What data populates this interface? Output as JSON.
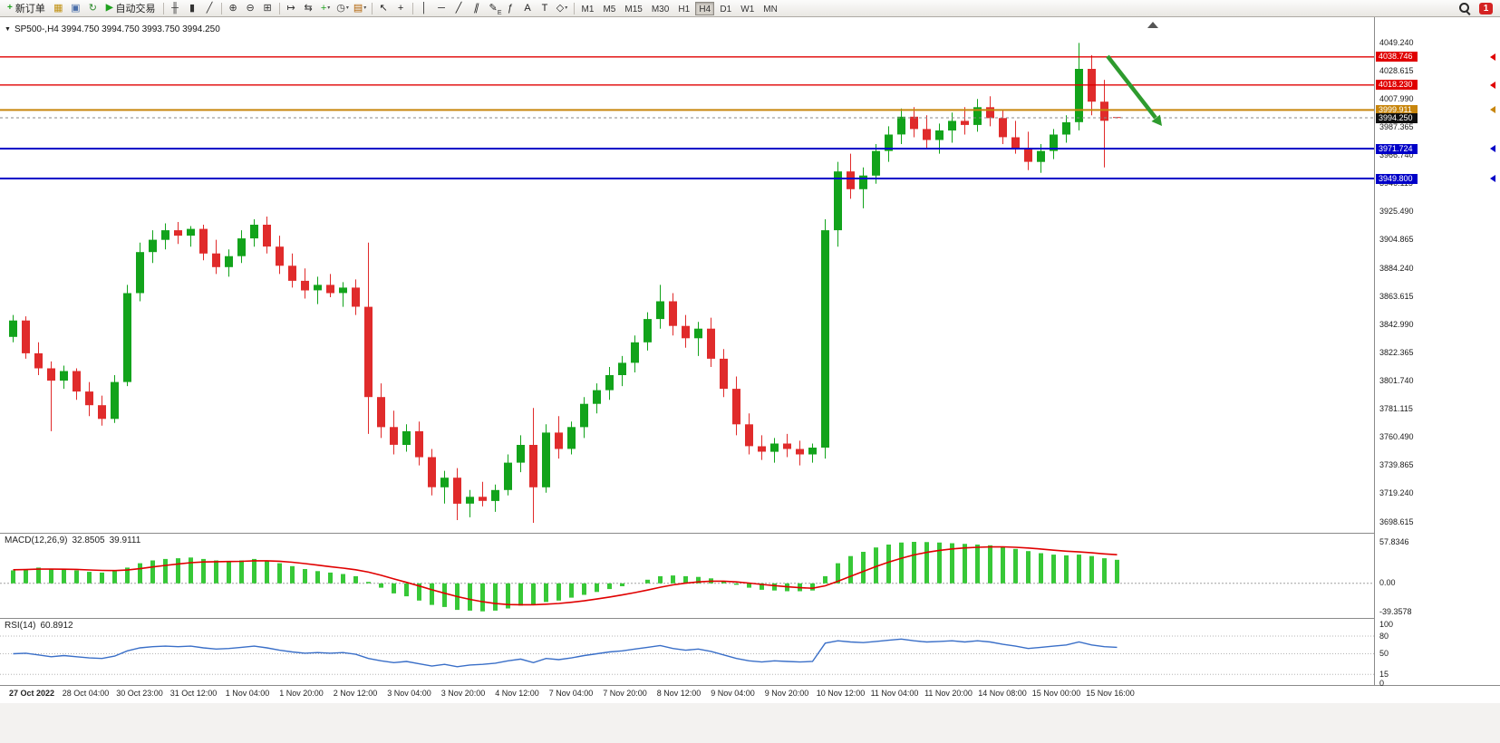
{
  "app": {
    "notification_count": "1"
  },
  "toolbar": {
    "caret_glyph": "▾",
    "items": [
      {
        "type": "button",
        "name": "new-order-button",
        "icon": "new-order-icon",
        "glyph": "+",
        "glyph_color": "#1fa11f",
        "label": "新订单"
      },
      {
        "type": "icon",
        "name": "new-chart-icon",
        "glyph": "▦",
        "color": "#c09010"
      },
      {
        "type": "icon",
        "name": "profiles-icon",
        "glyph": "▣",
        "color": "#4a6ea9"
      },
      {
        "type": "icon",
        "name": "refresh-icon",
        "glyph": "↻",
        "color": "#2e8b2e"
      },
      {
        "type": "button",
        "name": "autotrading-button",
        "icon": "autotrading-play-icon",
        "glyph": "▶",
        "glyph_color": "#1fa11f",
        "label": "自动交易"
      },
      {
        "type": "sep"
      },
      {
        "type": "icon",
        "name": "chart-bars-icon",
        "glyph": "╫",
        "color": "#333333"
      },
      {
        "type": "icon",
        "name": "chart-candles-icon",
        "glyph": "▮",
        "color": "#333333"
      },
      {
        "type": "icon",
        "name": "chart-line-icon",
        "glyph": "╱",
        "color": "#333333"
      },
      {
        "type": "sep"
      },
      {
        "type": "icon",
        "name": "zoom-in-icon",
        "glyph": "⊕",
        "color": "#333333"
      },
      {
        "type": "icon",
        "name": "zoom-out-icon",
        "glyph": "⊖",
        "color": "#333333"
      },
      {
        "type": "icon",
        "name": "tile-windows-icon",
        "glyph": "⊞",
        "color": "#333333"
      },
      {
        "type": "sep"
      },
      {
        "type": "icon",
        "name": "autoscroll-icon",
        "glyph": "↦",
        "color": "#333333"
      },
      {
        "type": "icon",
        "name": "chart-shift-icon",
        "glyph": "⇆",
        "color": "#333333"
      },
      {
        "type": "icon",
        "name": "indicators-icon",
        "glyph": "+",
        "color": "#1fa11f",
        "caret": true
      },
      {
        "type": "icon",
        "name": "periods-icon",
        "glyph": "◷",
        "color": "#333333",
        "caret": true
      },
      {
        "type": "icon",
        "name": "templates-icon",
        "glyph": "▤",
        "color": "#b06000",
        "caret": true
      },
      {
        "type": "sep"
      },
      {
        "type": "icon",
        "name": "cursor-icon",
        "glyph": "↖",
        "color": "#222222"
      },
      {
        "type": "icon",
        "name": "crosshair-icon",
        "glyph": "+",
        "color": "#222222"
      },
      {
        "type": "sep"
      },
      {
        "type": "icon",
        "name": "vertical-line-icon",
        "glyph": "│",
        "color": "#222222"
      },
      {
        "type": "icon",
        "name": "horizontal-line-icon",
        "glyph": "─",
        "color": "#222222"
      },
      {
        "type": "icon",
        "name": "trendline-icon",
        "glyph": "╱",
        "color": "#222222"
      },
      {
        "type": "icon",
        "name": "channel-icon",
        "glyph": "∥",
        "color": "#222222",
        "italic": true
      },
      {
        "type": "icon",
        "name": "equidistant-channel-icon",
        "glyph": "✎",
        "color": "#222222",
        "sub": "E"
      },
      {
        "type": "icon",
        "name": "fibonacci-icon",
        "glyph": "ƒ",
        "color": "#222222"
      },
      {
        "type": "icon",
        "name": "text-icon",
        "glyph": "A",
        "color": "#222222"
      },
      {
        "type": "icon",
        "name": "label-icon",
        "glyph": "T",
        "color": "#222222"
      },
      {
        "type": "icon",
        "name": "shapes-icon",
        "glyph": "◇",
        "color": "#222222",
        "caret": true
      },
      {
        "type": "sep"
      },
      {
        "type": "timeframes"
      }
    ],
    "timeframes": {
      "options": [
        "M1",
        "M5",
        "M15",
        "M30",
        "H1",
        "H4",
        "D1",
        "W1",
        "MN"
      ],
      "active": "H4"
    }
  },
  "chart": {
    "collapse_glyph": "▼",
    "title": "SP500-,H4 3994.750 3994.750 3993.750 3994.250",
    "symbol": "SP500-",
    "period": "H4",
    "ohlc": {
      "open": "3994.750",
      "high": "3994.750",
      "low": "3993.750",
      "close": "3994.250"
    },
    "price_axis": {
      "labels": [
        "4049.240",
        "4028.615",
        "4007.990",
        "3987.365",
        "3966.740",
        "3946.115",
        "3925.490",
        "3904.865",
        "3884.240",
        "3863.615",
        "3842.990",
        "3822.365",
        "3801.740",
        "3781.115",
        "3760.490",
        "3739.865",
        "3719.240",
        "3698.615"
      ],
      "values": [
        4049.24,
        4028.615,
        4007.99,
        3987.365,
        3966.74,
        3946.115,
        3925.49,
        3904.865,
        3884.24,
        3863.615,
        3842.99,
        3822.365,
        3801.74,
        3781.115,
        3760.49,
        3739.865,
        3719.24,
        3698.615
      ]
    },
    "price_lines": [
      {
        "value": 4038.746,
        "label": "4038.746",
        "color": "#e00000",
        "width": 1.4
      },
      {
        "value": 4018.23,
        "label": "4018.230",
        "color": "#e00000",
        "width": 1.4
      },
      {
        "value": 3999.911,
        "label": "3999.911",
        "color": "#c8860d",
        "width": 2
      },
      {
        "value": 3971.724,
        "label": "3971.724",
        "color": "#0000c8",
        "width": 2
      },
      {
        "value": 3949.8,
        "label": "3949.800",
        "color": "#0000c8",
        "width": 2
      }
    ],
    "bid": {
      "value": 3994.25,
      "label": "3994.250",
      "bg": "#101010"
    },
    "time_axis": [
      "27 Oct 2022",
      "28 Oct 04:00",
      "30 Oct 23:00",
      "31 Oct 12:00",
      "1 Nov 04:00",
      "1 Nov 20:00",
      "2 Nov 12:00",
      "3 Nov 04:00",
      "3 Nov 20:00",
      "4 Nov 12:00",
      "7 Nov 04:00",
      "7 Nov 20:00",
      "8 Nov 12:00",
      "9 Nov 04:00",
      "9 Nov 20:00",
      "10 Nov 12:00",
      "11 Nov 04:00",
      "11 Nov 20:00",
      "14 Nov 08:00",
      "15 Nov 00:00",
      "15 Nov 16:00"
    ]
  },
  "indicators": {
    "macd": {
      "name": "MACD(12,26,9)",
      "value1": "32.8505",
      "value2": "39.9111",
      "axis_labels": [
        "57.8346",
        "0.00",
        "-39.3578"
      ],
      "axis_values": [
        57.8346,
        0,
        -39.3578
      ]
    },
    "rsi": {
      "name": "RSI(14)",
      "value": "60.8912",
      "axis_labels": [
        "100",
        "80",
        "50",
        "15",
        "0"
      ],
      "axis_values": [
        100,
        80,
        50,
        15,
        0
      ],
      "levels": [
        80,
        50,
        15
      ]
    }
  },
  "colors": {
    "up": "#12a31b",
    "down": "#e02b2b",
    "macd_hist": "#37c837",
    "macd_signal": "#e00000",
    "rsi_line": "#3a6fc8",
    "arrow": "#2e9b2e",
    "separator": "#8a8a8a"
  },
  "chart_data": {
    "type": "candlestick",
    "title": "SP500-,H4",
    "symbol": "SP500-",
    "timeframe": "H4",
    "x_tick_labels": [
      "27 Oct 2022",
      "28 Oct 04:00",
      "30 Oct 23:00",
      "31 Oct 12:00",
      "1 Nov 04:00",
      "1 Nov 20:00",
      "2 Nov 12:00",
      "3 Nov 04:00",
      "3 Nov 20:00",
      "4 Nov 12:00",
      "7 Nov 04:00",
      "7 Nov 20:00",
      "8 Nov 12:00",
      "9 Nov 04:00",
      "9 Nov 20:00",
      "10 Nov 12:00",
      "11 Nov 04:00",
      "11 Nov 20:00",
      "14 Nov 08:00",
      "15 Nov 00:00",
      "15 Nov 16:00"
    ],
    "y_range": [
      3698.615,
      4049.24
    ],
    "candles": [
      [
        3834,
        3850,
        3830,
        3846
      ],
      [
        3846,
        3849,
        3818,
        3822
      ],
      [
        3822,
        3830,
        3806,
        3811
      ],
      [
        3811,
        3816,
        3765,
        3802
      ],
      [
        3802,
        3813,
        3796,
        3809
      ],
      [
        3809,
        3811,
        3788,
        3794
      ],
      [
        3794,
        3801,
        3776,
        3784
      ],
      [
        3784,
        3791,
        3769,
        3774
      ],
      [
        3774,
        3806,
        3771,
        3801
      ],
      [
        3801,
        3872,
        3798,
        3866
      ],
      [
        3866,
        3903,
        3860,
        3896
      ],
      [
        3896,
        3912,
        3888,
        3905
      ],
      [
        3905,
        3917,
        3898,
        3912
      ],
      [
        3912,
        3918,
        3902,
        3908
      ],
      [
        3908,
        3915,
        3900,
        3913
      ],
      [
        3913,
        3916,
        3890,
        3895
      ],
      [
        3895,
        3905,
        3880,
        3885
      ],
      [
        3885,
        3898,
        3878,
        3893
      ],
      [
        3893,
        3912,
        3888,
        3906
      ],
      [
        3906,
        3920,
        3900,
        3916
      ],
      [
        3916,
        3922,
        3895,
        3900
      ],
      [
        3900,
        3908,
        3880,
        3886
      ],
      [
        3886,
        3895,
        3870,
        3875
      ],
      [
        3875,
        3884,
        3862,
        3868
      ],
      [
        3868,
        3878,
        3858,
        3872
      ],
      [
        3872,
        3880,
        3863,
        3866
      ],
      [
        3866,
        3874,
        3856,
        3870
      ],
      [
        3870,
        3876,
        3850,
        3856
      ],
      [
        3856,
        3903,
        3763,
        3790
      ],
      [
        3790,
        3800,
        3760,
        3768
      ],
      [
        3768,
        3780,
        3748,
        3755
      ],
      [
        3755,
        3770,
        3750,
        3765
      ],
      [
        3765,
        3772,
        3740,
        3746
      ],
      [
        3746,
        3752,
        3718,
        3724
      ],
      [
        3724,
        3736,
        3712,
        3731
      ],
      [
        3731,
        3738,
        3700,
        3712
      ],
      [
        3712,
        3722,
        3702,
        3717
      ],
      [
        3717,
        3728,
        3710,
        3714
      ],
      [
        3714,
        3726,
        3706,
        3722
      ],
      [
        3722,
        3748,
        3718,
        3742
      ],
      [
        3742,
        3762,
        3735,
        3755
      ],
      [
        3755,
        3782,
        3698,
        3724
      ],
      [
        3724,
        3770,
        3720,
        3764
      ],
      [
        3764,
        3776,
        3745,
        3752
      ],
      [
        3752,
        3772,
        3748,
        3768
      ],
      [
        3768,
        3790,
        3760,
        3785
      ],
      [
        3785,
        3800,
        3778,
        3795
      ],
      [
        3795,
        3812,
        3788,
        3806
      ],
      [
        3806,
        3820,
        3798,
        3815
      ],
      [
        3815,
        3835,
        3808,
        3830
      ],
      [
        3830,
        3852,
        3824,
        3847
      ],
      [
        3847,
        3872,
        3840,
        3860
      ],
      [
        3860,
        3866,
        3835,
        3842
      ],
      [
        3842,
        3850,
        3826,
        3833
      ],
      [
        3833,
        3845,
        3820,
        3840
      ],
      [
        3840,
        3848,
        3812,
        3818
      ],
      [
        3818,
        3825,
        3790,
        3796
      ],
      [
        3796,
        3805,
        3762,
        3770
      ],
      [
        3770,
        3778,
        3748,
        3754
      ],
      [
        3754,
        3762,
        3744,
        3750
      ],
      [
        3750,
        3760,
        3742,
        3756
      ],
      [
        3756,
        3763,
        3746,
        3752
      ],
      [
        3752,
        3758,
        3740,
        3748
      ],
      [
        3748,
        3756,
        3742,
        3753
      ],
      [
        3753,
        3920,
        3745,
        3912
      ],
      [
        3912,
        3962,
        3900,
        3955
      ],
      [
        3955,
        3968,
        3935,
        3942
      ],
      [
        3942,
        3958,
        3928,
        3952
      ],
      [
        3952,
        3975,
        3946,
        3970
      ],
      [
        3970,
        3988,
        3962,
        3982
      ],
      [
        3982,
        4001,
        3975,
        3995
      ],
      [
        3995,
        4002,
        3980,
        3986
      ],
      [
        3986,
        3996,
        3972,
        3978
      ],
      [
        3978,
        3990,
        3968,
        3985
      ],
      [
        3985,
        3998,
        3976,
        3992
      ],
      [
        3992,
        4002,
        3982,
        3989
      ],
      [
        3989,
        4008,
        3984,
        4002
      ],
      [
        4002,
        4010,
        3988,
        3994
      ],
      [
        3994,
        4000,
        3975,
        3980
      ],
      [
        3980,
        3992,
        3968,
        3972
      ],
      [
        3972,
        3984,
        3956,
        3962
      ],
      [
        3962,
        3975,
        3954,
        3970
      ],
      [
        3970,
        3986,
        3964,
        3982
      ],
      [
        3982,
        3996,
        3976,
        3991
      ],
      [
        3991,
        4049,
        3985,
        4030
      ],
      [
        4030,
        4040,
        3996,
        4006
      ],
      [
        4006,
        4022,
        3958,
        3992
      ],
      [
        3994.75,
        3994.75,
        3993.75,
        3994.25
      ]
    ],
    "macd": {
      "type": "bar+line",
      "range": [
        -39.3578,
        57.8346
      ],
      "histogram": [
        18,
        20,
        22,
        20,
        19,
        18,
        16,
        15,
        17,
        22,
        28,
        32,
        34,
        35,
        36,
        34,
        32,
        31,
        32,
        34,
        32,
        28,
        24,
        20,
        17,
        15,
        13,
        10,
        2,
        -6,
        -14,
        -18,
        -24,
        -30,
        -33,
        -37,
        -38,
        -39,
        -38,
        -35,
        -31,
        -30,
        -26,
        -24,
        -20,
        -16,
        -12,
        -8,
        -4,
        0,
        5,
        10,
        11,
        10,
        9,
        7,
        3,
        -2,
        -6,
        -9,
        -10,
        -11,
        -11,
        -10,
        10,
        28,
        38,
        44,
        50,
        54,
        57,
        57.8,
        57.5,
        57,
        56,
        55,
        54,
        53,
        51,
        48,
        45,
        42,
        40,
        39,
        40,
        38,
        35,
        32.85
      ],
      "signal": [
        19,
        19.2,
        19.8,
        19.8,
        19.7,
        19.4,
        18.7,
        18,
        17.8,
        18.6,
        20.5,
        22.8,
        25,
        27,
        28.8,
        29.8,
        30.2,
        30.4,
        30.7,
        31.4,
        31.5,
        30.8,
        29.4,
        27.5,
        25.4,
        23.3,
        21.2,
        19,
        15.6,
        11.3,
        6.2,
        1.4,
        -3.7,
        -9,
        -13.8,
        -18.4,
        -22.3,
        -25.6,
        -28.1,
        -29.5,
        -29.8,
        -29.8,
        -29,
        -28,
        -26.4,
        -24.3,
        -21.9,
        -19.1,
        -16.1,
        -12.9,
        -9.3,
        -5.4,
        -2.1,
        0.3,
        2,
        3,
        3,
        2,
        0.4,
        -1.5,
        -3.2,
        -4.8,
        -6,
        -6.8,
        -3.4,
        2.9,
        9.9,
        16.7,
        23.4,
        29.5,
        35,
        39.6,
        43.2,
        46,
        48,
        49.4,
        50.3,
        50.8,
        50.9,
        50.3,
        49.2,
        47.8,
        46.2,
        44.8,
        43.8,
        42.6,
        41.1,
        39.91
      ]
    },
    "rsi": {
      "type": "line",
      "range": [
        0,
        100
      ],
      "values": [
        50,
        51,
        48,
        45,
        47,
        45,
        43,
        42,
        46,
        55,
        60,
        62,
        63,
        62,
        63,
        60,
        58,
        59,
        61,
        63,
        60,
        56,
        53,
        51,
        52,
        51,
        52,
        49,
        42,
        38,
        35,
        37,
        33,
        29,
        32,
        28,
        31,
        32,
        34,
        38,
        41,
        35,
        42,
        40,
        43,
        47,
        50,
        53,
        55,
        58,
        61,
        64,
        59,
        56,
        58,
        54,
        48,
        42,
        38,
        36,
        38,
        37,
        36,
        37,
        68,
        72,
        70,
        69,
        71,
        73,
        75,
        72,
        70,
        71,
        72,
        70,
        72,
        70,
        66,
        63,
        59,
        61,
        63,
        65,
        70,
        65,
        62,
        60.89
      ]
    }
  }
}
